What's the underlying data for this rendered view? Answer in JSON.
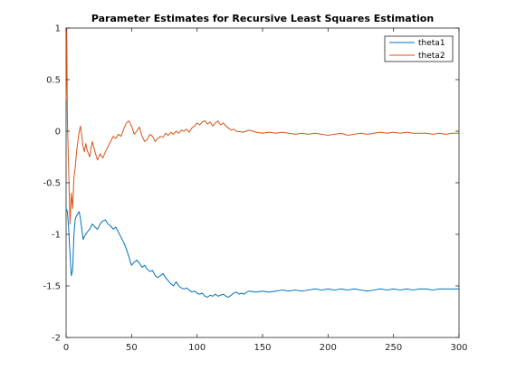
{
  "chart_data": {
    "type": "line",
    "title": "Parameter Estimates for Recursive Least Squares Estimation",
    "xlabel": "",
    "ylabel": "",
    "xlim": [
      0,
      300
    ],
    "ylim": [
      -2,
      1
    ],
    "xticks": [
      0,
      50,
      100,
      150,
      200,
      250,
      300
    ],
    "yticks": [
      -2,
      -1.5,
      -1,
      -0.5,
      0,
      0.5,
      1
    ],
    "xtick_labels": [
      "0",
      "50",
      "100",
      "150",
      "200",
      "250",
      "300"
    ],
    "ytick_labels": [
      "-2",
      "-1.5",
      "-1",
      "-0.5",
      "0",
      "0.5",
      "1"
    ],
    "grid": false,
    "legend_position": "top-right",
    "series": [
      {
        "name": "theta1",
        "color": "#0072BD",
        "points": [
          [
            0,
            -0.75
          ],
          [
            1,
            -0.78
          ],
          [
            2,
            -0.95
          ],
          [
            3,
            -1.2
          ],
          [
            4,
            -1.4
          ],
          [
            5,
            -1.35
          ],
          [
            6,
            -1.0
          ],
          [
            7,
            -0.85
          ],
          [
            8,
            -0.82
          ],
          [
            9,
            -0.8
          ],
          [
            10,
            -0.78
          ],
          [
            11,
            -0.85
          ],
          [
            12,
            -0.95
          ],
          [
            13,
            -1.05
          ],
          [
            14,
            -1.02
          ],
          [
            15,
            -1.0
          ],
          [
            16,
            -0.98
          ],
          [
            18,
            -0.95
          ],
          [
            20,
            -0.9
          ],
          [
            22,
            -0.93
          ],
          [
            24,
            -0.95
          ],
          [
            26,
            -0.9
          ],
          [
            28,
            -0.87
          ],
          [
            30,
            -0.86
          ],
          [
            32,
            -0.9
          ],
          [
            34,
            -0.92
          ],
          [
            36,
            -0.95
          ],
          [
            38,
            -0.93
          ],
          [
            40,
            -0.98
          ],
          [
            42,
            -1.03
          ],
          [
            44,
            -1.08
          ],
          [
            46,
            -1.14
          ],
          [
            48,
            -1.22
          ],
          [
            50,
            -1.3
          ],
          [
            52,
            -1.27
          ],
          [
            54,
            -1.25
          ],
          [
            56,
            -1.28
          ],
          [
            58,
            -1.32
          ],
          [
            60,
            -1.3
          ],
          [
            62,
            -1.34
          ],
          [
            64,
            -1.36
          ],
          [
            66,
            -1.35
          ],
          [
            68,
            -1.4
          ],
          [
            70,
            -1.42
          ],
          [
            72,
            -1.4
          ],
          [
            74,
            -1.38
          ],
          [
            76,
            -1.42
          ],
          [
            78,
            -1.45
          ],
          [
            80,
            -1.48
          ],
          [
            82,
            -1.5
          ],
          [
            84,
            -1.46
          ],
          [
            86,
            -1.5
          ],
          [
            88,
            -1.52
          ],
          [
            90,
            -1.53
          ],
          [
            92,
            -1.52
          ],
          [
            94,
            -1.54
          ],
          [
            96,
            -1.56
          ],
          [
            98,
            -1.55
          ],
          [
            100,
            -1.57
          ],
          [
            102,
            -1.58
          ],
          [
            104,
            -1.57
          ],
          [
            106,
            -1.6
          ],
          [
            108,
            -1.61
          ],
          [
            110,
            -1.59
          ],
          [
            112,
            -1.6
          ],
          [
            114,
            -1.58
          ],
          [
            116,
            -1.6
          ],
          [
            118,
            -1.59
          ],
          [
            120,
            -1.58
          ],
          [
            122,
            -1.6
          ],
          [
            124,
            -1.61
          ],
          [
            126,
            -1.59
          ],
          [
            128,
            -1.57
          ],
          [
            130,
            -1.56
          ],
          [
            132,
            -1.58
          ],
          [
            134,
            -1.57
          ],
          [
            136,
            -1.58
          ],
          [
            138,
            -1.56
          ],
          [
            140,
            -1.55
          ],
          [
            145,
            -1.56
          ],
          [
            150,
            -1.55
          ],
          [
            155,
            -1.56
          ],
          [
            160,
            -1.55
          ],
          [
            165,
            -1.54
          ],
          [
            170,
            -1.55
          ],
          [
            175,
            -1.54
          ],
          [
            180,
            -1.55
          ],
          [
            185,
            -1.54
          ],
          [
            190,
            -1.53
          ],
          [
            195,
            -1.54
          ],
          [
            200,
            -1.53
          ],
          [
            205,
            -1.54
          ],
          [
            210,
            -1.53
          ],
          [
            215,
            -1.54
          ],
          [
            220,
            -1.53
          ],
          [
            225,
            -1.54
          ],
          [
            230,
            -1.55
          ],
          [
            235,
            -1.54
          ],
          [
            240,
            -1.53
          ],
          [
            245,
            -1.54
          ],
          [
            250,
            -1.53
          ],
          [
            255,
            -1.54
          ],
          [
            260,
            -1.53
          ],
          [
            265,
            -1.54
          ],
          [
            270,
            -1.53
          ],
          [
            275,
            -1.53
          ],
          [
            280,
            -1.54
          ],
          [
            285,
            -1.53
          ],
          [
            290,
            -1.53
          ],
          [
            295,
            -1.53
          ],
          [
            300,
            -1.53
          ]
        ]
      },
      {
        "name": "theta2",
        "color": "#D95319",
        "points": [
          [
            0,
            0.3
          ],
          [
            0.5,
            1.0
          ],
          [
            1,
            0.1
          ],
          [
            2,
            -0.4
          ],
          [
            3,
            -0.9
          ],
          [
            4,
            -0.6
          ],
          [
            5,
            -0.75
          ],
          [
            6,
            -0.45
          ],
          [
            7,
            -0.35
          ],
          [
            8,
            -0.2
          ],
          [
            9,
            -0.1
          ],
          [
            10,
            0.0
          ],
          [
            11,
            0.05
          ],
          [
            12,
            -0.05
          ],
          [
            13,
            -0.15
          ],
          [
            14,
            -0.2
          ],
          [
            15,
            -0.12
          ],
          [
            16,
            -0.18
          ],
          [
            18,
            -0.25
          ],
          [
            20,
            -0.1
          ],
          [
            22,
            -0.2
          ],
          [
            24,
            -0.28
          ],
          [
            26,
            -0.22
          ],
          [
            28,
            -0.26
          ],
          [
            30,
            -0.2
          ],
          [
            32,
            -0.15
          ],
          [
            34,
            -0.1
          ],
          [
            36,
            -0.05
          ],
          [
            38,
            -0.07
          ],
          [
            40,
            -0.03
          ],
          [
            42,
            -0.05
          ],
          [
            44,
            0.02
          ],
          [
            46,
            0.08
          ],
          [
            48,
            0.1
          ],
          [
            50,
            0.05
          ],
          [
            52,
            -0.03
          ],
          [
            54,
            0.0
          ],
          [
            56,
            0.04
          ],
          [
            58,
            -0.05
          ],
          [
            60,
            -0.1
          ],
          [
            62,
            -0.08
          ],
          [
            64,
            -0.03
          ],
          [
            66,
            -0.05
          ],
          [
            68,
            -0.1
          ],
          [
            70,
            -0.07
          ],
          [
            72,
            -0.05
          ],
          [
            74,
            -0.06
          ],
          [
            76,
            -0.02
          ],
          [
            78,
            -0.04
          ],
          [
            80,
            -0.01
          ],
          [
            82,
            -0.03
          ],
          [
            84,
            0.0
          ],
          [
            86,
            -0.02
          ],
          [
            88,
            0.01
          ],
          [
            90,
            0.0
          ],
          [
            92,
            0.02
          ],
          [
            94,
            -0.01
          ],
          [
            96,
            0.03
          ],
          [
            98,
            0.05
          ],
          [
            100,
            0.08
          ],
          [
            102,
            0.06
          ],
          [
            104,
            0.09
          ],
          [
            106,
            0.1
          ],
          [
            108,
            0.07
          ],
          [
            110,
            0.09
          ],
          [
            112,
            0.05
          ],
          [
            114,
            0.08
          ],
          [
            116,
            0.1
          ],
          [
            118,
            0.06
          ],
          [
            120,
            0.08
          ],
          [
            122,
            0.05
          ],
          [
            124,
            0.03
          ],
          [
            126,
            0.01
          ],
          [
            128,
            0.02
          ],
          [
            130,
            0.0
          ],
          [
            135,
            -0.01
          ],
          [
            140,
            0.01
          ],
          [
            145,
            -0.01
          ],
          [
            150,
            -0.02
          ],
          [
            155,
            -0.01
          ],
          [
            160,
            -0.02
          ],
          [
            165,
            -0.01
          ],
          [
            170,
            -0.02
          ],
          [
            175,
            -0.03
          ],
          [
            180,
            -0.02
          ],
          [
            185,
            -0.03
          ],
          [
            190,
            -0.02
          ],
          [
            195,
            -0.03
          ],
          [
            200,
            -0.04
          ],
          [
            205,
            -0.03
          ],
          [
            210,
            -0.02
          ],
          [
            215,
            -0.04
          ],
          [
            220,
            -0.03
          ],
          [
            225,
            -0.02
          ],
          [
            230,
            -0.03
          ],
          [
            235,
            -0.02
          ],
          [
            240,
            -0.01
          ],
          [
            245,
            -0.02
          ],
          [
            250,
            -0.01
          ],
          [
            255,
            -0.02
          ],
          [
            260,
            -0.01
          ],
          [
            265,
            -0.02
          ],
          [
            270,
            -0.02
          ],
          [
            275,
            -0.02
          ],
          [
            280,
            -0.03
          ],
          [
            285,
            -0.02
          ],
          [
            290,
            -0.03
          ],
          [
            295,
            -0.02
          ],
          [
            300,
            -0.02
          ]
        ]
      }
    ]
  }
}
